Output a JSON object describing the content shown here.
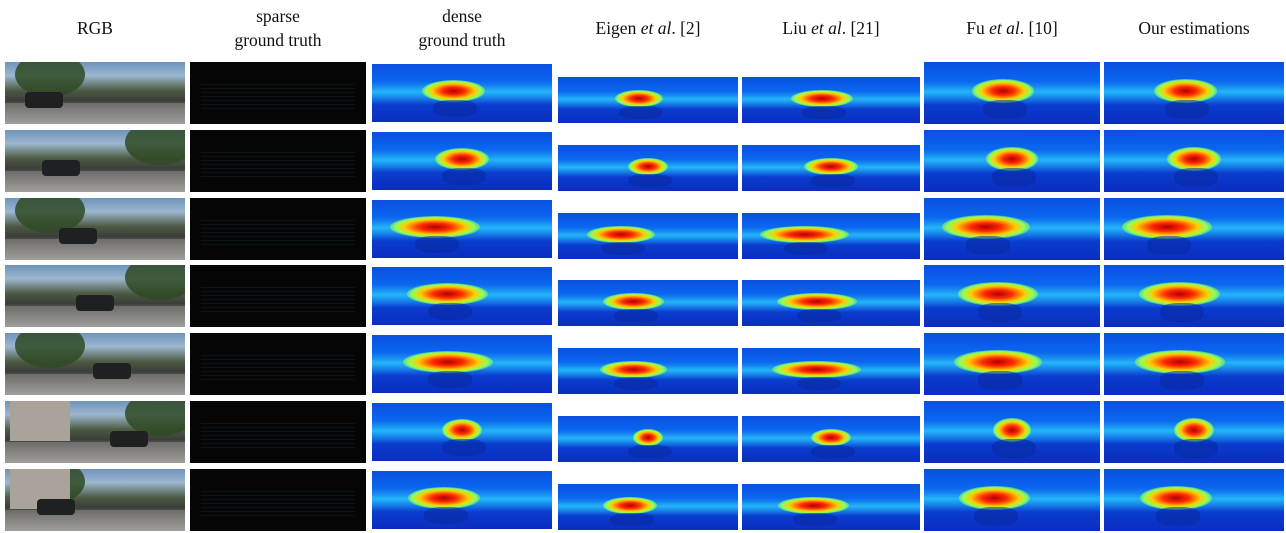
{
  "columns": [
    {
      "id": "rgb",
      "lines": [
        "RGB"
      ]
    },
    {
      "id": "sparse",
      "lines": [
        "sparse",
        "ground truth"
      ]
    },
    {
      "id": "dense",
      "lines": [
        "dense",
        "ground truth"
      ]
    },
    {
      "id": "eigen",
      "lines": [
        "Eigen et al. [2]"
      ],
      "name": "Eigen ",
      "italic": "et al",
      "suffix": ". [2]"
    },
    {
      "id": "liu",
      "lines": [
        "Liu et al. [21]"
      ],
      "name": "Liu ",
      "italic": "et al",
      "suffix": ". [21]"
    },
    {
      "id": "fu",
      "lines": [
        "Fu et al. [10]"
      ],
      "name": "Fu ",
      "italic": "et al",
      "suffix": ". [10]"
    },
    {
      "id": "ours",
      "lines": [
        "Our estimations"
      ]
    }
  ],
  "rows": 7,
  "colors": {
    "depth_far": "#0b2dbf",
    "depth_mid": "#0a66f0",
    "depth_near_hot": "#ff2a00",
    "depth_peak": "#b10000",
    "sparse_bg": "#050505"
  }
}
